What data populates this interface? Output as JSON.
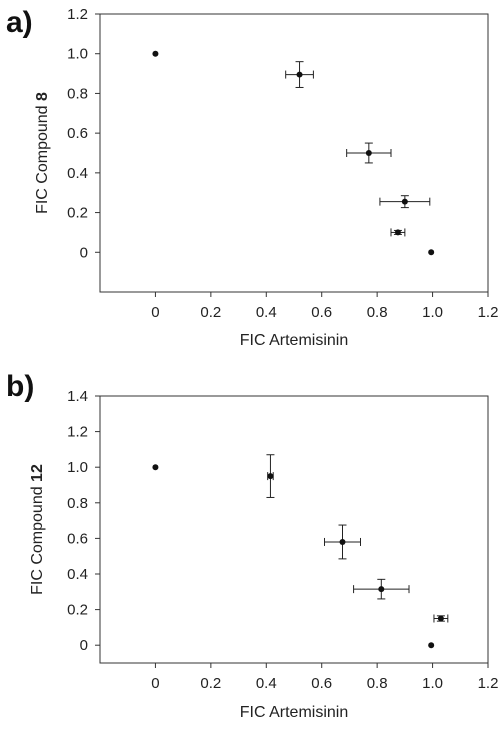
{
  "chart_data": [
    {
      "type": "scatter",
      "panel_label": "a)",
      "xlabel": "FIC Artemisinin",
      "ylabel_prefix": "FIC Compound ",
      "ylabel_bold": "8",
      "xlim": [
        -0.2,
        1.2
      ],
      "ylim": [
        -0.2,
        1.2
      ],
      "xticks": [
        0,
        0.2,
        0.4,
        0.6,
        0.8,
        1.0,
        1.2
      ],
      "xtick_labels": [
        "0",
        "0.2",
        "0.4",
        "0.6",
        "0.8",
        "1.0",
        "1.2"
      ],
      "yticks": [
        0,
        0.2,
        0.4,
        0.6,
        0.8,
        1.0,
        1.2
      ],
      "ytick_labels": [
        "0",
        "0.2",
        "0.4",
        "0.6",
        "0.8",
        "1.0",
        "1.2"
      ],
      "points": [
        {
          "x": 0.0,
          "y": 1.0,
          "xerr": 0,
          "yerr": 0
        },
        {
          "x": 0.52,
          "y": 0.895,
          "xerr": 0.05,
          "yerr": 0.065
        },
        {
          "x": 0.77,
          "y": 0.5,
          "xerr": 0.08,
          "yerr": 0.05
        },
        {
          "x": 0.9,
          "y": 0.255,
          "xerr": 0.09,
          "yerr": 0.03
        },
        {
          "x": 0.875,
          "y": 0.1,
          "xerr": 0.025,
          "yerr": 0.01
        },
        {
          "x": 0.995,
          "y": 0.0,
          "xerr": 0,
          "yerr": 0
        }
      ]
    },
    {
      "type": "scatter",
      "panel_label": "b)",
      "xlabel": "FIC Artemisinin",
      "ylabel_prefix": "FIC Compound ",
      "ylabel_bold": "12",
      "xlim": [
        -0.2,
        1.2
      ],
      "ylim": [
        -0.1,
        1.4
      ],
      "xticks": [
        0,
        0.2,
        0.4,
        0.6,
        0.8,
        1.0,
        1.2
      ],
      "xtick_labels": [
        "0",
        "0.2",
        "0.4",
        "0.6",
        "0.8",
        "1.0",
        "1.2"
      ],
      "yticks": [
        0,
        0.2,
        0.4,
        0.6,
        0.8,
        1.0,
        1.2,
        1.4
      ],
      "ytick_labels": [
        "0",
        "0.2",
        "0.4",
        "0.6",
        "0.8",
        "1.0",
        "1.2",
        "1.4"
      ],
      "points": [
        {
          "x": 0.0,
          "y": 1.0,
          "xerr": 0,
          "yerr": 0
        },
        {
          "x": 0.415,
          "y": 0.95,
          "xerr": 0.01,
          "yerr": 0.12
        },
        {
          "x": 0.675,
          "y": 0.58,
          "xerr": 0.065,
          "yerr": 0.095
        },
        {
          "x": 0.815,
          "y": 0.315,
          "xerr": 0.1,
          "yerr": 0.055
        },
        {
          "x": 1.03,
          "y": 0.15,
          "xerr": 0.025,
          "yerr": 0.015
        },
        {
          "x": 0.995,
          "y": 0.0,
          "xerr": 0,
          "yerr": 0
        }
      ]
    }
  ]
}
